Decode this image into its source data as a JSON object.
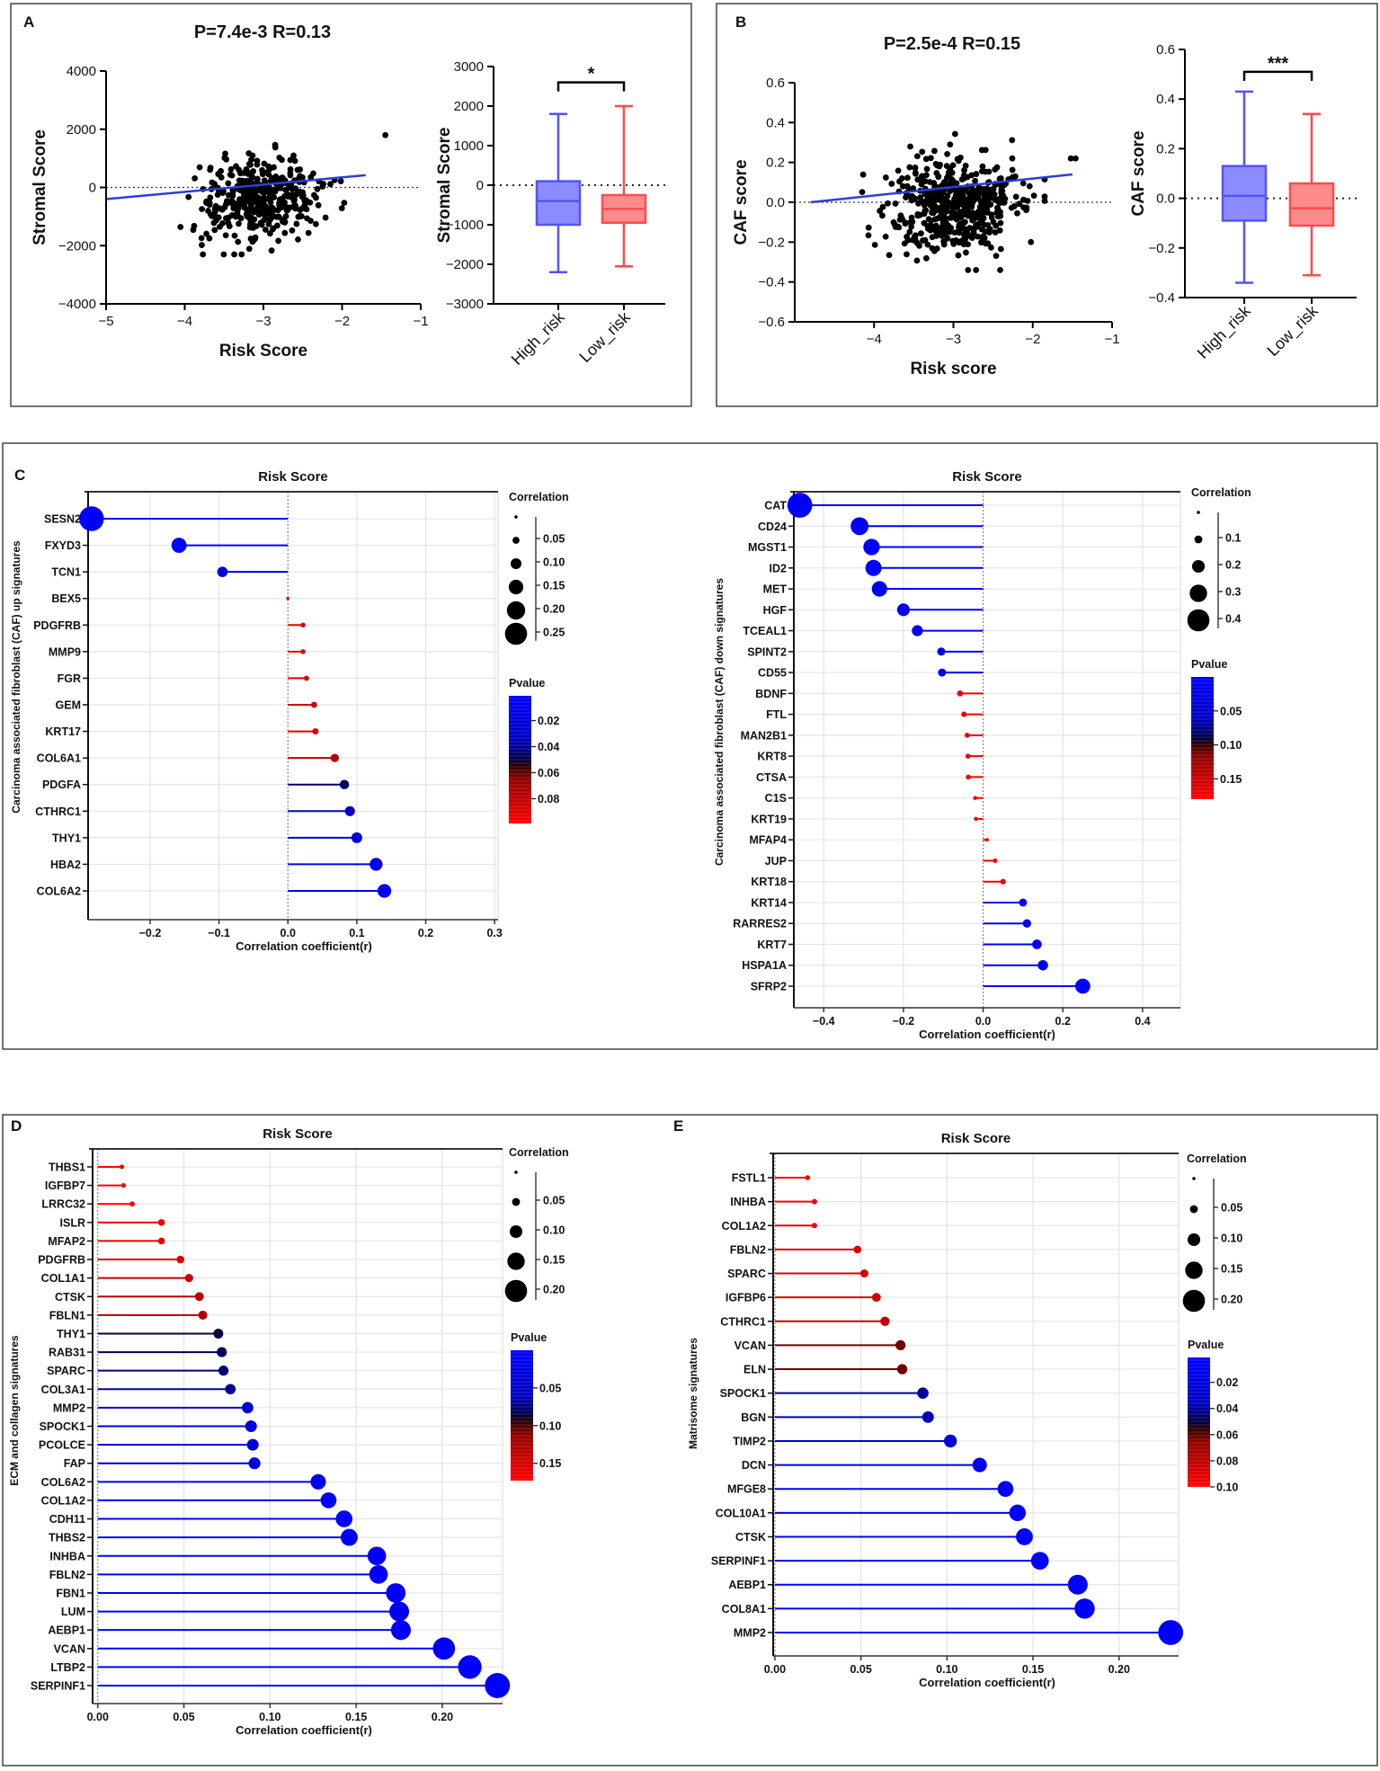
{
  "panels": {
    "A": "A",
    "B": "B",
    "C": "C",
    "D": "D",
    "E": "E"
  },
  "pvalue_gradient": [
    "#0000ff",
    "#0000c0",
    "#000040",
    "#300000",
    "#900000",
    "#ff0000"
  ],
  "chart_data": [
    {
      "id": "A_scatter",
      "type": "scatter",
      "title": "P=7.4e-3 R=0.13",
      "xlabel": "Risk Score",
      "ylabel": "Stromal Score",
      "xlim": [
        -5,
        -1
      ],
      "ylim": [
        -4000,
        4000
      ],
      "xticks": [
        -5,
        -4,
        -3,
        -2,
        -1
      ],
      "yticks": [
        -4000,
        -2000,
        0,
        2000,
        4000
      ],
      "reference_line_y": 0,
      "regression_line": [
        [
          -5,
          -400
        ],
        [
          -1.7,
          420
        ]
      ],
      "point_cloud": {
        "n": 380,
        "x_mean": -3.05,
        "x_sd": 0.38,
        "x_range": [
          -4.1,
          -1.9
        ],
        "y_mean": -400,
        "y_sd": 720,
        "y_range": [
          -2300,
          2000
        ],
        "slope": 300
      },
      "outliers": [
        [
          -1.45,
          1800
        ]
      ],
      "color": "#000000",
      "line_color": "#2b3fd6"
    },
    {
      "id": "A_box",
      "type": "box",
      "ylabel": "Stromal Score",
      "ylim": [
        -3000,
        3000
      ],
      "yticks": [
        -3000,
        -2000,
        -1000,
        0,
        1000,
        2000,
        3000
      ],
      "reference_line_y": 0,
      "categories": [
        "High_risk",
        "Low_risk"
      ],
      "boxes": [
        {
          "min": -2200,
          "q1": -1000,
          "median": -400,
          "q3": 100,
          "max": 1800,
          "fill": "#8c8cff",
          "stroke": "#5252ff"
        },
        {
          "min": -2050,
          "q1": -950,
          "median": -600,
          "q3": -250,
          "max": 2000,
          "fill": "#ff8c8c",
          "stroke": "#ff4b4b"
        }
      ],
      "significance": {
        "label": "*",
        "y": 2600
      }
    },
    {
      "id": "B_scatter",
      "type": "scatter",
      "title": "P=2.5e-4 R=0.15",
      "xlabel": "Risk score",
      "ylabel": "CAF score",
      "xlim": [
        -5,
        -1
      ],
      "ylim": [
        -0.6,
        0.6
      ],
      "xticks": [
        -4,
        -3,
        -2,
        -1
      ],
      "yticks": [
        -0.6,
        -0.4,
        -0.2,
        0.0,
        0.2,
        0.4,
        0.6
      ],
      "reference_line_y": 0,
      "regression_line": [
        [
          -4.8,
          0.0
        ],
        [
          -1.5,
          0.14
        ]
      ],
      "point_cloud": {
        "n": 520,
        "x_mean": -3.0,
        "x_sd": 0.4,
        "x_range": [
          -4.15,
          -1.85
        ],
        "y_mean": -0.01,
        "y_sd": 0.12,
        "y_range": [
          -0.34,
          0.44
        ],
        "slope": 0.02
      },
      "outliers": [
        [
          -1.52,
          0.22
        ],
        [
          -1.46,
          0.22
        ]
      ],
      "color": "#000000",
      "line_color": "#2b3fd6"
    },
    {
      "id": "B_box",
      "type": "box",
      "ylabel": "CAF score",
      "ylim": [
        -0.4,
        0.6
      ],
      "yticks": [
        -0.4,
        -0.2,
        0.0,
        0.2,
        0.4,
        0.6
      ],
      "reference_line_y": 0,
      "categories": [
        "High_risk",
        "Low_risk"
      ],
      "boxes": [
        {
          "min": -0.34,
          "q1": -0.09,
          "median": 0.01,
          "q3": 0.13,
          "max": 0.43,
          "fill": "#8c8cff",
          "stroke": "#5252ff"
        },
        {
          "min": -0.31,
          "q1": -0.11,
          "median": -0.04,
          "q3": 0.06,
          "max": 0.34,
          "fill": "#ff8c8c",
          "stroke": "#ff4b4b"
        }
      ],
      "significance": {
        "label": "***",
        "y": 0.51
      }
    },
    {
      "id": "C_up",
      "type": "lollipop",
      "title": "Risk Score",
      "xlabel": "Correlation coefficient(r)",
      "ylabel": "Carcinoma associated fibroblast (CAF) up signatures",
      "xlim": [
        -0.29,
        0.305
      ],
      "xticks": [
        -0.2,
        -0.1,
        0.0,
        0.1,
        0.2,
        0.3
      ],
      "xtick_labels": [
        "−0.2",
        "−0.1",
        "0.0",
        "0.1",
        "0.2",
        "0.3"
      ],
      "size_legend": {
        "title": "Correlation",
        "values": [
          0.05,
          0.1,
          0.15,
          0.2,
          0.25
        ],
        "labels": [
          "0.05",
          "0.10",
          "0.15",
          "0.20",
          "0.25"
        ]
      },
      "color_legend": {
        "title": "Pvalue",
        "range": [
          0.001,
          0.099
        ],
        "ticks": [
          0.02,
          0.04,
          0.06,
          0.08
        ],
        "labels": [
          "0.02",
          "0.04",
          "0.06",
          "0.08"
        ]
      },
      "genes": [
        "SESN2",
        "FXYD3",
        "TCN1",
        "BEX5",
        "PDGFRB",
        "MMP9",
        "FGR",
        "GEM",
        "KRT17",
        "COL6A1",
        "PDGFA",
        "CTHRC1",
        "THY1",
        "HBA2",
        "COL6A2"
      ],
      "r": [
        -0.285,
        -0.158,
        -0.095,
        0.0,
        0.022,
        0.022,
        0.027,
        0.038,
        0.04,
        0.068,
        0.082,
        0.09,
        0.1,
        0.128,
        0.14
      ],
      "pvalue": [
        0.001,
        0.003,
        0.022,
        0.095,
        0.092,
        0.092,
        0.09,
        0.088,
        0.088,
        0.078,
        0.045,
        0.03,
        0.02,
        0.01,
        0.006
      ]
    },
    {
      "id": "C_down",
      "type": "lollipop",
      "title": "Risk Score",
      "xlabel": "Correlation coefficient(r)",
      "ylabel": "Carcinoma associated fibroblast (CAF) down signatures",
      "xlim": [
        -0.475,
        0.495
      ],
      "xticks": [
        -0.4,
        -0.2,
        0.0,
        0.2,
        0.4
      ],
      "xtick_labels": [
        "−0.4",
        "−0.2",
        "0.0",
        "0.2",
        "0.4"
      ],
      "size_legend": {
        "title": "Correlation",
        "values": [
          0.1,
          0.2,
          0.3,
          0.4
        ],
        "labels": [
          "0.1",
          "0.2",
          "0.3",
          "0.4"
        ]
      },
      "color_legend": {
        "title": "Pvalue",
        "range": [
          0.0,
          0.18
        ],
        "ticks": [
          0.05,
          0.1,
          0.15
        ],
        "labels": [
          "0.05",
          "0.10",
          "0.15"
        ]
      },
      "genes": [
        "CAT",
        "CD24",
        "MGST1",
        "ID2",
        "MET",
        "HGF",
        "TCEAL1",
        "SPINT2",
        "CD55",
        "BDNF",
        "FTL",
        "MAN2B1",
        "KRT8",
        "CTSA",
        "C1S",
        "KRT19",
        "MFAP4",
        "JUP",
        "KRT18",
        "KRT14",
        "RARRES2",
        "KRT7",
        "HSPA1A",
        "SFRP2"
      ],
      "r": [
        -0.46,
        -0.31,
        -0.28,
        -0.275,
        -0.26,
        -0.2,
        -0.165,
        -0.105,
        -0.103,
        -0.058,
        -0.048,
        -0.04,
        -0.038,
        -0.037,
        -0.02,
        -0.018,
        0.01,
        0.03,
        0.05,
        0.1,
        0.11,
        0.135,
        0.15,
        0.25
      ],
      "pvalue": [
        0.001,
        0.002,
        0.003,
        0.003,
        0.004,
        0.006,
        0.01,
        0.02,
        0.02,
        0.17,
        0.17,
        0.175,
        0.175,
        0.175,
        0.178,
        0.178,
        0.178,
        0.176,
        0.17,
        0.02,
        0.015,
        0.01,
        0.008,
        0.002
      ]
    },
    {
      "id": "D",
      "type": "lollipop",
      "title": "Risk Score",
      "xlabel": "Correlation coefficient(r)",
      "ylabel": "ECM and collagen signatures",
      "xlim": [
        -0.003,
        0.235
      ],
      "xticks": [
        0.0,
        0.05,
        0.1,
        0.15,
        0.2
      ],
      "xtick_labels": [
        "0.00",
        "0.05",
        "0.10",
        "0.15",
        "0.20"
      ],
      "size_legend": {
        "title": "Correlation",
        "values": [
          0.05,
          0.1,
          0.15,
          0.2
        ],
        "labels": [
          "0.05",
          "0.10",
          "0.15",
          "0.20"
        ]
      },
      "color_legend": {
        "title": "Pvalue",
        "range": [
          0.0,
          0.173
        ],
        "ticks": [
          0.05,
          0.1,
          0.15
        ],
        "labels": [
          "0.05",
          "0.10",
          "0.15"
        ]
      },
      "genes": [
        "THBS1",
        "IGFBP7",
        "LRRC32",
        "ISLR",
        "MFAP2",
        "PDGFRB",
        "COL1A1",
        "CTSK",
        "FBLN1",
        "THY1",
        "RAB31",
        "SPARC",
        "COL3A1",
        "MMP2",
        "SPOCK1",
        "PCOLCE",
        "FAP",
        "COL6A2",
        "COL1A2",
        "CDH11",
        "THBS2",
        "INHBA",
        "FBLN2",
        "FBN1",
        "LUM",
        "AEBP1",
        "VCAN",
        "LTBP2",
        "SERPINF1"
      ],
      "r": [
        0.014,
        0.015,
        0.02,
        0.037,
        0.037,
        0.048,
        0.053,
        0.059,
        0.061,
        0.07,
        0.072,
        0.073,
        0.077,
        0.087,
        0.089,
        0.09,
        0.091,
        0.128,
        0.134,
        0.143,
        0.146,
        0.162,
        0.163,
        0.173,
        0.175,
        0.176,
        0.201,
        0.216,
        0.232
      ],
      "pvalue": [
        0.17,
        0.17,
        0.168,
        0.16,
        0.16,
        0.15,
        0.145,
        0.135,
        0.13,
        0.088,
        0.08,
        0.076,
        0.068,
        0.04,
        0.035,
        0.035,
        0.033,
        0.01,
        0.008,
        0.005,
        0.005,
        0.003,
        0.003,
        0.002,
        0.002,
        0.002,
        0.001,
        0.001,
        0.0005
      ]
    },
    {
      "id": "E",
      "type": "lollipop",
      "title": "Risk Score",
      "xlabel": "Correlation coefficient(r)",
      "ylabel": "Matrisome signatures",
      "xlim": [
        -0.001,
        0.2346
      ],
      "xticks": [
        0.0,
        0.05,
        0.1,
        0.15,
        0.2
      ],
      "xtick_labels": [
        "0.00",
        "0.05",
        "0.10",
        "0.15",
        "0.20"
      ],
      "size_legend": {
        "title": "Correlation",
        "values": [
          0.05,
          0.1,
          0.15,
          0.2
        ],
        "labels": [
          "0.05",
          "0.10",
          "0.15",
          "0.20"
        ]
      },
      "color_legend": {
        "title": "Pvalue",
        "range": [
          0.001,
          0.1
        ],
        "ticks": [
          0.02,
          0.04,
          0.06,
          0.08,
          0.1
        ],
        "labels": [
          "0.02",
          "0.04",
          "0.06",
          "0.08",
          "0.10"
        ]
      },
      "genes": [
        "FSTL1",
        "INHBA",
        "COL1A2",
        "FBLN2",
        "SPARC",
        "IGFBP6",
        "CTHRC1",
        "VCAN",
        "ELN",
        "SPOCK1",
        "BGN",
        "TIMP2",
        "DCN",
        "MFGE8",
        "COL10A1",
        "CTSK",
        "SERPINF1",
        "AEBP1",
        "COL8A1",
        "MMP2"
      ],
      "r": [
        0.019,
        0.023,
        0.023,
        0.048,
        0.052,
        0.059,
        0.064,
        0.073,
        0.074,
        0.086,
        0.089,
        0.102,
        0.119,
        0.134,
        0.141,
        0.145,
        0.154,
        0.176,
        0.18,
        0.23
      ],
      "pvalue": [
        0.097,
        0.095,
        0.095,
        0.09,
        0.088,
        0.085,
        0.082,
        0.062,
        0.062,
        0.04,
        0.035,
        0.022,
        0.012,
        0.006,
        0.005,
        0.004,
        0.003,
        0.002,
        0.002,
        0.001
      ]
    }
  ]
}
